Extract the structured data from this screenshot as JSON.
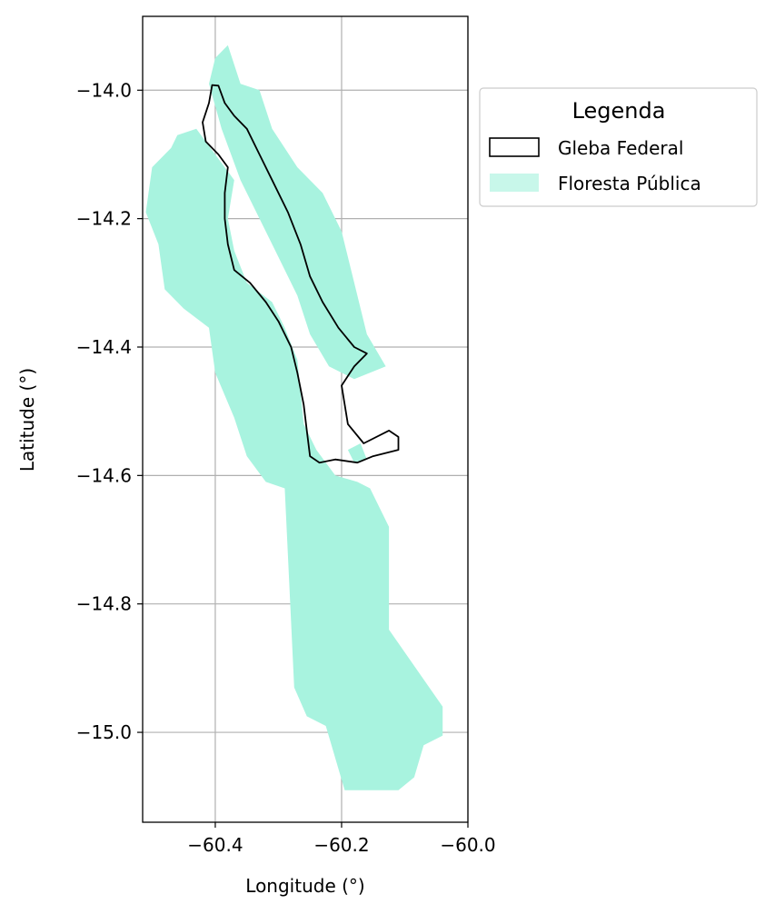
{
  "chart_data": {
    "type": "map",
    "xlabel": "Longitude (°)",
    "ylabel": "Latitude (°)",
    "xlim": [
      -60.515,
      -60.0
    ],
    "ylim": [
      -15.14,
      -13.885
    ],
    "xticks": [
      -60.4,
      -60.2,
      -60.0
    ],
    "xtick_labels": [
      "−60.4",
      "−60.2",
      "−60.0"
    ],
    "yticks": [
      -14.0,
      -14.2,
      -14.4,
      -14.6,
      -14.8,
      -15.0
    ],
    "ytick_labels": [
      "−14.0",
      "−14.2",
      "−14.4",
      "−14.6",
      "−14.8",
      "−15.0"
    ],
    "grid": true,
    "legend": {
      "title": "Legenda",
      "placement": "outside-upper-right",
      "items": [
        {
          "label": "Gleba Federal",
          "style": "outline",
          "color": "#000000"
        },
        {
          "label": "Floresta Pública",
          "style": "fill",
          "color": "#a8f3df"
        }
      ]
    },
    "layers": {
      "floresta_publica": {
        "name": "Floresta Pública",
        "color": "#a8f3df",
        "polygons": [
          [
            [
              -60.38,
              -13.93
            ],
            [
              -60.36,
              -13.99
            ],
            [
              -60.33,
              -14.0
            ],
            [
              -60.31,
              -14.06
            ],
            [
              -60.27,
              -14.12
            ],
            [
              -60.23,
              -14.16
            ],
            [
              -60.2,
              -14.22
            ],
            [
              -60.18,
              -14.3
            ],
            [
              -60.16,
              -14.38
            ],
            [
              -60.13,
              -14.43
            ],
            [
              -60.18,
              -14.45
            ],
            [
              -60.22,
              -14.43
            ],
            [
              -60.25,
              -14.38
            ],
            [
              -60.27,
              -14.32
            ],
            [
              -60.3,
              -14.26
            ],
            [
              -60.33,
              -14.2
            ],
            [
              -60.36,
              -14.14
            ],
            [
              -60.39,
              -14.06
            ],
            [
              -60.41,
              -13.99
            ],
            [
              -60.4,
              -13.95
            ]
          ],
          [
            [
              -60.47,
              -14.09
            ],
            [
              -60.5,
              -14.12
            ],
            [
              -60.51,
              -14.19
            ],
            [
              -60.49,
              -14.24
            ],
            [
              -60.48,
              -14.31
            ],
            [
              -60.45,
              -14.34
            ],
            [
              -60.41,
              -14.37
            ],
            [
              -60.4,
              -14.44
            ],
            [
              -60.37,
              -14.51
            ],
            [
              -60.35,
              -14.57
            ],
            [
              -60.32,
              -14.61
            ],
            [
              -60.29,
              -14.62
            ],
            [
              -60.275,
              -14.93
            ],
            [
              -60.255,
              -14.975
            ],
            [
              -60.225,
              -14.99
            ],
            [
              -60.195,
              -15.09
            ],
            [
              -60.11,
              -15.09
            ],
            [
              -60.085,
              -15.07
            ],
            [
              -60.07,
              -15.02
            ],
            [
              -60.04,
              -15.005
            ],
            [
              -60.04,
              -14.96
            ],
            [
              -60.125,
              -14.84
            ],
            [
              -60.125,
              -14.68
            ],
            [
              -60.155,
              -14.62
            ],
            [
              -60.175,
              -14.61
            ],
            [
              -60.21,
              -14.6
            ],
            [
              -60.24,
              -14.56
            ],
            [
              -60.26,
              -14.52
            ],
            [
              -60.27,
              -14.42
            ],
            [
              -60.29,
              -14.37
            ],
            [
              -60.31,
              -14.33
            ],
            [
              -60.35,
              -14.3
            ],
            [
              -60.37,
              -14.25
            ],
            [
              -60.38,
              -14.2
            ],
            [
              -60.37,
              -14.14
            ],
            [
              -60.4,
              -14.1
            ],
            [
              -60.43,
              -14.06
            ],
            [
              -60.46,
              -14.07
            ]
          ],
          [
            [
              -60.19,
              -14.56
            ],
            [
              -60.17,
              -14.55
            ],
            [
              -60.16,
              -14.575
            ],
            [
              -60.18,
              -14.58
            ]
          ]
        ]
      },
      "gleba_federal": {
        "name": "Gleba Federal",
        "color": "#000000",
        "polygons": [
          [
            [
              -60.405,
              -13.992
            ],
            [
              -60.395,
              -13.993
            ],
            [
              -60.385,
              -14.02
            ],
            [
              -60.37,
              -14.04
            ],
            [
              -60.35,
              -14.06
            ],
            [
              -60.33,
              -14.1
            ],
            [
              -60.31,
              -14.14
            ],
            [
              -60.285,
              -14.19
            ],
            [
              -60.265,
              -14.24
            ],
            [
              -60.25,
              -14.29
            ],
            [
              -60.23,
              -14.33
            ],
            [
              -60.205,
              -14.37
            ],
            [
              -60.18,
              -14.4
            ],
            [
              -60.16,
              -14.41
            ],
            [
              -60.18,
              -14.43
            ],
            [
              -60.2,
              -14.46
            ],
            [
              -60.19,
              -14.52
            ],
            [
              -60.165,
              -14.55
            ],
            [
              -60.125,
              -14.53
            ],
            [
              -60.11,
              -14.54
            ],
            [
              -60.11,
              -14.56
            ],
            [
              -60.15,
              -14.57
            ],
            [
              -60.175,
              -14.58
            ],
            [
              -60.21,
              -14.575
            ],
            [
              -60.235,
              -14.58
            ],
            [
              -60.25,
              -14.57
            ],
            [
              -60.255,
              -14.53
            ],
            [
              -60.26,
              -14.49
            ],
            [
              -60.27,
              -14.44
            ],
            [
              -60.28,
              -14.4
            ],
            [
              -60.3,
              -14.36
            ],
            [
              -60.32,
              -14.33
            ],
            [
              -60.345,
              -14.3
            ],
            [
              -60.37,
              -14.28
            ],
            [
              -60.38,
              -14.24
            ],
            [
              -60.385,
              -14.2
            ],
            [
              -60.385,
              -14.16
            ],
            [
              -60.38,
              -14.12
            ],
            [
              -60.395,
              -14.1
            ],
            [
              -60.415,
              -14.08
            ],
            [
              -60.42,
              -14.05
            ],
            [
              -60.41,
              -14.02
            ]
          ]
        ]
      }
    }
  }
}
